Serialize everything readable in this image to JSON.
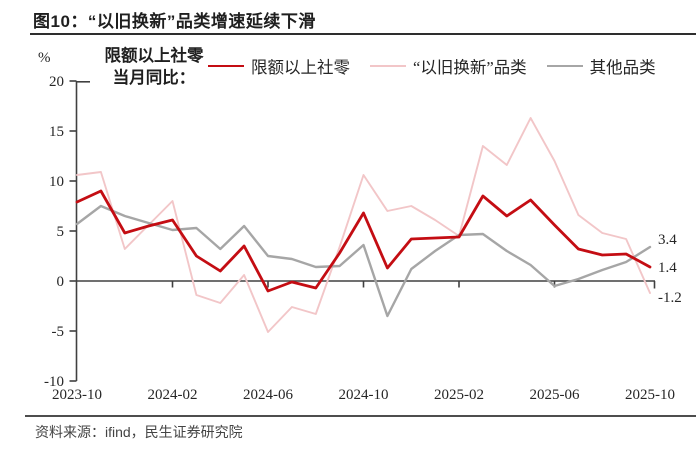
{
  "header": {
    "title": "图10：“以旧换新”品类增速延续下滑"
  },
  "legend": {
    "unit": "%",
    "header_line1": "限额以上社零",
    "header_line2": "当月同比：",
    "items": [
      {
        "key": "total-retail",
        "label": "限额以上社零",
        "color": "#c40d13"
      },
      {
        "key": "trade-in-categories",
        "label": "“以旧换新”品类",
        "color": "#f2c6c8"
      },
      {
        "key": "other-categories",
        "label": "其他品类",
        "color": "#a6a6a6"
      }
    ]
  },
  "chart_data": {
    "type": "line",
    "title": "图10：“以旧换新”品类增速延续下滑",
    "ylabel": "%",
    "ylim": [
      -10,
      20
    ],
    "ytick_interval": 5,
    "ytick_labels": [
      "20",
      "15",
      "10",
      "5",
      "0",
      "-5",
      "-10"
    ],
    "grid": false,
    "legend_position": "top",
    "x": [
      "2023-10",
      "2023-11",
      "2023-12",
      "2024-01",
      "2024-02",
      "2024-03",
      "2024-04",
      "2024-05",
      "2024-06",
      "2024-07",
      "2024-08",
      "2024-09",
      "2024-10",
      "2024-11",
      "2024-12",
      "2025-01",
      "2025-02",
      "2025-03",
      "2025-04",
      "2025-05",
      "2025-06",
      "2025-07",
      "2025-08",
      "2025-09",
      "2025-10"
    ],
    "xtick_labels": [
      "2023-10",
      "2024-02",
      "2024-06",
      "2024-10",
      "2025-02",
      "2025-06",
      "2025-10"
    ],
    "series": [
      {
        "name": "限额以上社零",
        "key": "total-retail",
        "color": "#c40d13",
        "values": [
          7.9,
          9.0,
          4.8,
          5.5,
          6.1,
          2.5,
          1.0,
          3.5,
          -1.0,
          -0.1,
          -0.7,
          2.8,
          6.8,
          1.3,
          4.2,
          4.3,
          4.4,
          8.5,
          6.5,
          8.1,
          5.6,
          3.2,
          2.6,
          2.7,
          1.4
        ]
      },
      {
        "name": "“以旧换新”品类",
        "key": "trade-in-categories",
        "color": "#f2c6c8",
        "values": [
          10.6,
          10.9,
          3.2,
          5.6,
          8.0,
          -1.4,
          -2.2,
          0.6,
          -5.1,
          -2.6,
          -3.3,
          3.4,
          10.6,
          7.0,
          7.5,
          6.1,
          4.5,
          13.5,
          11.6,
          16.3,
          12.0,
          6.6,
          4.8,
          4.2,
          -1.2
        ]
      },
      {
        "name": "其他品类",
        "key": "other-categories",
        "color": "#a6a6a6",
        "values": [
          5.7,
          7.5,
          6.5,
          5.8,
          5.1,
          5.3,
          3.2,
          5.5,
          2.5,
          2.2,
          1.4,
          1.5,
          3.6,
          -3.5,
          1.2,
          3.0,
          4.6,
          4.7,
          3.0,
          1.6,
          -0.5,
          0.2,
          1.1,
          1.9,
          3.4
        ]
      }
    ],
    "end_labels": [
      {
        "series": "其他品类",
        "text": "3.4"
      },
      {
        "series": "限额以上社零",
        "text": "1.4"
      },
      {
        "series": "“以旧换新”品类",
        "text": "-1.2"
      }
    ]
  },
  "footer": {
    "source": "资料来源：ifind，民生证券研究院"
  }
}
